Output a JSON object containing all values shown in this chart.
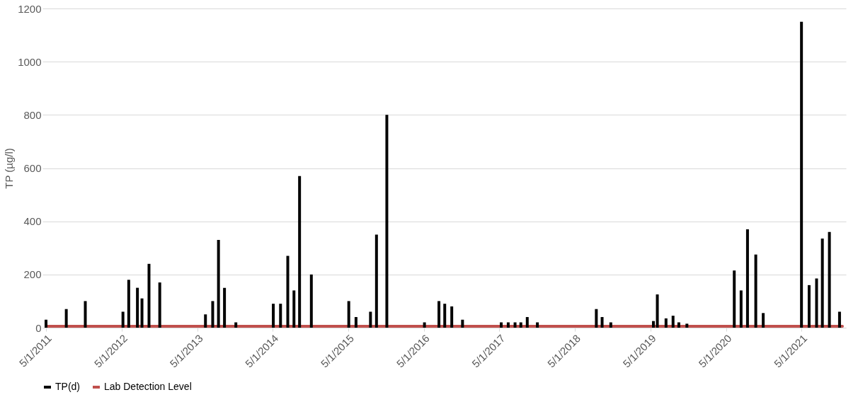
{
  "chart_data": {
    "type": "bar",
    "ylabel": "TP (µg/l)",
    "x": [
      "2011-05-01",
      "2011-08-07",
      "2011-11-07",
      "2012-05-07",
      "2012-06-04",
      "2012-07-16",
      "2012-08-07",
      "2012-09-10",
      "2012-11-01",
      "2013-06-10",
      "2013-07-15",
      "2013-08-12",
      "2013-09-10",
      "2013-11-04",
      "2014-05-04",
      "2014-06-08",
      "2014-07-13",
      "2014-08-12",
      "2014-09-08",
      "2014-11-04",
      "2015-05-04",
      "2015-06-08",
      "2015-08-17",
      "2015-09-15",
      "2015-11-04",
      "2016-05-04",
      "2016-07-13",
      "2016-08-10",
      "2016-09-13",
      "2016-11-04",
      "2017-05-10",
      "2017-06-13",
      "2017-07-16",
      "2017-08-13",
      "2017-09-13",
      "2017-11-01",
      "2018-08-13",
      "2018-09-10",
      "2018-10-22",
      "2019-05-16",
      "2019-06-04",
      "2019-07-16",
      "2019-08-19",
      "2019-09-16",
      "2019-10-25",
      "2020-06-10",
      "2020-07-13",
      "2020-08-13",
      "2020-09-22",
      "2020-10-28",
      "2021-05-01",
      "2021-06-07",
      "2021-07-13",
      "2021-08-10",
      "2021-09-13",
      "2021-11-01"
    ],
    "xlim": [
      "2011-05-01",
      "2021-11-15"
    ],
    "xticks": [
      {
        "value": "2011-05-01",
        "label": "5/1/2011"
      },
      {
        "value": "2012-05-01",
        "label": "5/1/2012"
      },
      {
        "value": "2013-05-01",
        "label": "5/1/2013"
      },
      {
        "value": "2014-05-01",
        "label": "5/1/2014"
      },
      {
        "value": "2015-05-01",
        "label": "5/1/2015"
      },
      {
        "value": "2016-05-01",
        "label": "5/1/2016"
      },
      {
        "value": "2017-05-01",
        "label": "5/1/2017"
      },
      {
        "value": "2018-05-01",
        "label": "5/1/2018"
      },
      {
        "value": "2019-05-01",
        "label": "5/1/2019"
      },
      {
        "value": "2020-05-01",
        "label": "5/1/2020"
      },
      {
        "value": "2021-05-01",
        "label": "5/1/2021"
      }
    ],
    "ylim": [
      0,
      1200
    ],
    "yticks": [
      0,
      200,
      400,
      600,
      800,
      1000,
      1200
    ],
    "grid": "y",
    "legend": "bottom",
    "series": [
      {
        "name": "TP(d)",
        "color": "#000000",
        "values": [
          30,
          70,
          100,
          60,
          180,
          150,
          110,
          240,
          170,
          50,
          100,
          330,
          150,
          20,
          90,
          90,
          270,
          140,
          570,
          200,
          100,
          40,
          60,
          350,
          800,
          20,
          100,
          90,
          80,
          30,
          20,
          20,
          20,
          20,
          40,
          20,
          70,
          40,
          20,
          25,
          125,
          35,
          45,
          20,
          15,
          215,
          140,
          370,
          275,
          55,
          1150,
          160,
          185,
          335,
          360,
          60
        ]
      },
      {
        "name": "Lab Detection Level",
        "type": "line",
        "color": "#c0504d",
        "x": [
          "2011-05-01",
          "2021-11-15"
        ],
        "values": [
          5,
          5
        ]
      }
    ]
  }
}
